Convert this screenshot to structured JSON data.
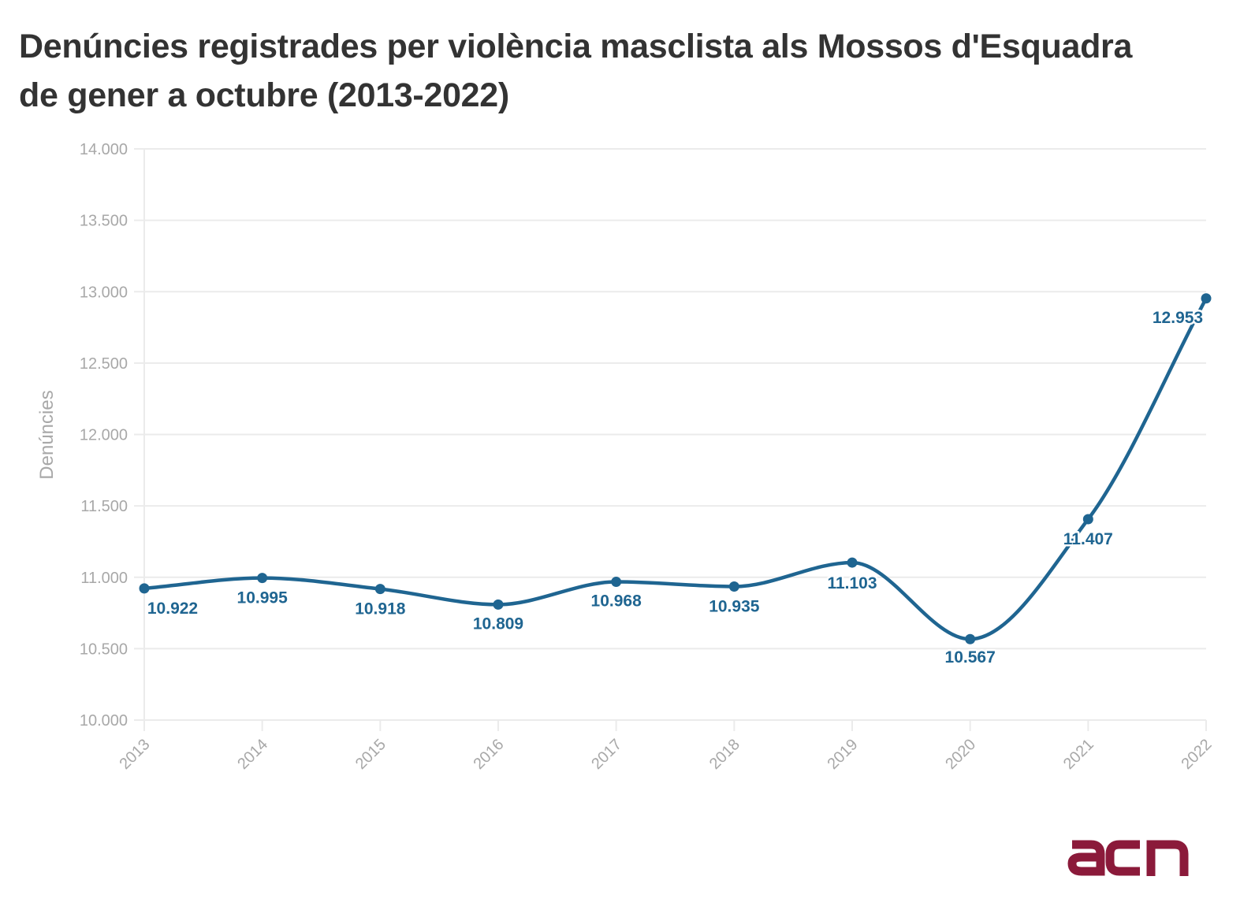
{
  "header": {
    "title_line1": "Denúncies registrades per violència masclista als Mossos d'Esquadra",
    "title_line2": "de gener a octubre (2013-2022)"
  },
  "logo": {
    "text": "acn",
    "color": "#8b1a3a"
  },
  "colors": {
    "series": "#1f6591",
    "grid": "#ebebeb",
    "axis_text": "#a8a8a8",
    "title": "#333333"
  },
  "chart_data": {
    "type": "line",
    "title": "Denúncies registrades per violència masclista als Mossos d'Esquadra de gener a octubre (2013-2022)",
    "xlabel": "",
    "ylabel": "Denúncies",
    "x": [
      "2013",
      "2014",
      "2015",
      "2016",
      "2017",
      "2018",
      "2019",
      "2020",
      "2021",
      "2022"
    ],
    "series": [
      {
        "name": "Denúncies",
        "values": [
          10922,
          10995,
          10918,
          10809,
          10968,
          10935,
          11103,
          10567,
          11407,
          12953
        ],
        "labels": [
          "10.922",
          "10.995",
          "10.918",
          "10.809",
          "10.968",
          "10.935",
          "11.103",
          "10.567",
          "11.407",
          "12.953"
        ]
      }
    ],
    "ylim": [
      10000,
      14000
    ],
    "yticks": [
      10000,
      10500,
      11000,
      11500,
      12000,
      12500,
      13000,
      13500,
      14000
    ],
    "ytick_labels": [
      "10.000",
      "10.500",
      "11.000",
      "11.500",
      "12.000",
      "12.500",
      "13.000",
      "13.500",
      "14.000"
    ],
    "grid": true,
    "smooth": true,
    "legend": "none"
  }
}
